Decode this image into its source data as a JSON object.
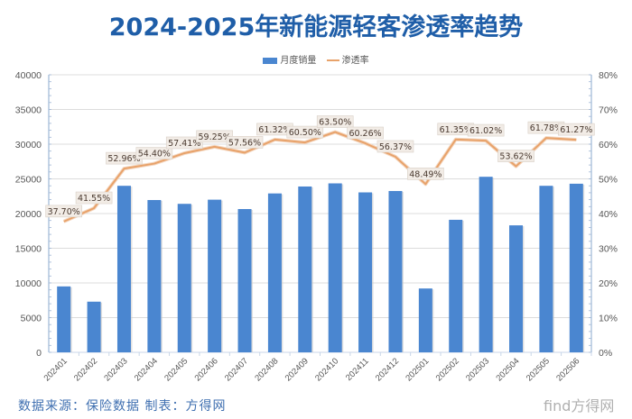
{
  "chart_data": {
    "type": "bar",
    "title": "2024-2025年新能源轻客渗透率趋势",
    "categories": [
      "202401",
      "202402",
      "202403",
      "202404",
      "202405",
      "202406",
      "202407",
      "202408",
      "202409",
      "202410",
      "202411",
      "202412",
      "202501",
      "202502",
      "202503",
      "202504",
      "202505",
      "202506"
    ],
    "series": [
      {
        "name": "月度销量",
        "type": "bar",
        "axis": "left",
        "color": "#4a86d0",
        "values": [
          9500,
          7300,
          24000,
          21950,
          21400,
          22000,
          20650,
          22900,
          23900,
          24350,
          23050,
          23250,
          9200,
          19100,
          25300,
          18300,
          24000,
          24300
        ]
      },
      {
        "name": "渗透率",
        "type": "line",
        "axis": "right",
        "color": "#e8a26a",
        "values": [
          37.7,
          41.55,
          52.96,
          54.4,
          57.41,
          59.25,
          57.56,
          61.32,
          60.5,
          63.5,
          60.26,
          56.37,
          48.49,
          61.35,
          61.02,
          53.62,
          61.78,
          61.27
        ],
        "labels": [
          "37.70%",
          "41.55%",
          "52.96%",
          "54.40%",
          "57.41%",
          "59.25%",
          "57.56%",
          "61.32%",
          "60.50%",
          "63.50%",
          "60.26%",
          "56.37%",
          "48.49%",
          "61.35%",
          "61.02%",
          "53.62%",
          "61.78%",
          "61.27%"
        ]
      }
    ],
    "y_left": {
      "ylim": [
        0,
        40000
      ],
      "ticks": [
        "0",
        "5000",
        "10000",
        "15000",
        "20000",
        "25000",
        "30000",
        "35000",
        "40000"
      ]
    },
    "y_right": {
      "ylim": [
        0,
        80
      ],
      "ticks": [
        "0%",
        "10%",
        "20%",
        "30%",
        "40%",
        "50%",
        "60%",
        "70%",
        "80%"
      ]
    },
    "grid": true,
    "legend": "top-center"
  },
  "legend": {
    "bar_label": "月度销量",
    "line_label": "渗透率"
  },
  "footer": "数据来源：保险数据 制表：方得网",
  "watermark": "find方得网"
}
